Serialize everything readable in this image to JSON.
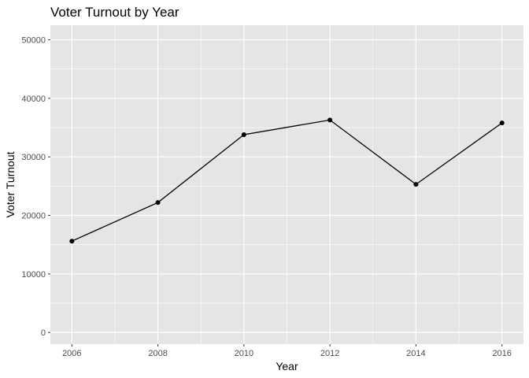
{
  "chart_data": {
    "type": "line",
    "title": "Voter Turnout by Year",
    "xlabel": "Year",
    "ylabel": "Voter Turnout",
    "x": [
      2006,
      2008,
      2010,
      2012,
      2014,
      2016
    ],
    "y": [
      15600,
      22200,
      33800,
      36300,
      25300,
      35800
    ],
    "xlim": [
      2005.5,
      2016.5
    ],
    "ylim": [
      -2000,
      52500
    ],
    "xticks": [
      2006,
      2008,
      2010,
      2012,
      2014,
      2016
    ],
    "xtick_labels": [
      "2006",
      "2008",
      "2010",
      "2012",
      "2014",
      "2016"
    ],
    "yticks": [
      0,
      10000,
      20000,
      30000,
      40000,
      50000
    ],
    "ytick_labels": [
      "0",
      "10000",
      "20000",
      "30000",
      "40000",
      "50000"
    ],
    "grid": true,
    "legend": "none",
    "colors": {
      "panel": "#e5e5e5",
      "grid": "#ffffff",
      "line": "#000000",
      "point": "#000000"
    }
  }
}
